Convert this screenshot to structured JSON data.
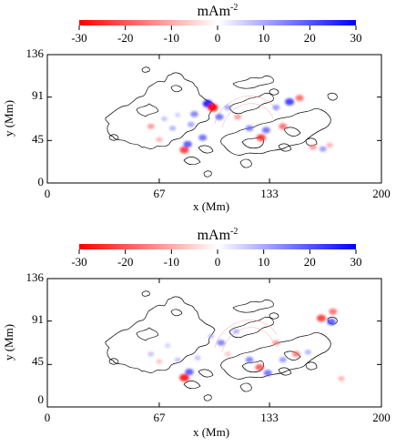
{
  "chart_data": [
    {
      "type": "heatmap",
      "colorbar": {
        "title": "mAm",
        "title_exponent": "-2",
        "range": [
          -30,
          30
        ],
        "ticks": [
          "-30",
          "-20",
          "-10",
          "0",
          "10",
          "20",
          "30"
        ],
        "colors": [
          "#ff0000",
          "#ffffff",
          "#0000ff"
        ]
      },
      "xlabel": "x (Mm)",
      "ylabel": "y (Mm)",
      "xlim": [
        0,
        200
      ],
      "ylim": [
        0,
        136
      ],
      "xticks": [
        "0",
        "67",
        "133",
        "200"
      ],
      "yticks": [
        "0",
        "45",
        "91",
        "136"
      ],
      "contour_color": "#000000",
      "blobs": [
        {
          "x": 62,
          "y": 60,
          "v": -15
        },
        {
          "x": 67,
          "y": 46,
          "v": -12
        },
        {
          "x": 70,
          "y": 68,
          "v": 10
        },
        {
          "x": 75,
          "y": 58,
          "v": 12
        },
        {
          "x": 78,
          "y": 72,
          "v": 8
        },
        {
          "x": 82,
          "y": 35,
          "v": -25
        },
        {
          "x": 84,
          "y": 41,
          "v": 22
        },
        {
          "x": 86,
          "y": 62,
          "v": 14
        },
        {
          "x": 88,
          "y": 73,
          "v": 18
        },
        {
          "x": 93,
          "y": 48,
          "v": 20
        },
        {
          "x": 96,
          "y": 84,
          "v": 28
        },
        {
          "x": 99,
          "y": 80,
          "v": -30
        },
        {
          "x": 103,
          "y": 70,
          "v": 20
        },
        {
          "x": 108,
          "y": 80,
          "v": 14
        },
        {
          "x": 114,
          "y": 70,
          "v": -15
        },
        {
          "x": 121,
          "y": 58,
          "v": 18
        },
        {
          "x": 128,
          "y": 48,
          "v": -25
        },
        {
          "x": 131,
          "y": 56,
          "v": 20
        },
        {
          "x": 137,
          "y": 80,
          "v": 15
        },
        {
          "x": 141,
          "y": 60,
          "v": -20
        },
        {
          "x": 145,
          "y": 86,
          "v": 25
        },
        {
          "x": 151,
          "y": 90,
          "v": -20
        },
        {
          "x": 159,
          "y": 38,
          "v": -15
        },
        {
          "x": 165,
          "y": 36,
          "v": 15
        },
        {
          "x": 169,
          "y": 40,
          "v": -12
        }
      ]
    },
    {
      "type": "heatmap",
      "colorbar": {
        "title": "mAm",
        "title_exponent": "-2",
        "range": [
          -30,
          30
        ],
        "ticks": [
          "-30",
          "-20",
          "-10",
          "0",
          "10",
          "20",
          "30"
        ],
        "colors": [
          "#ff0000",
          "#ffffff",
          "#0000ff"
        ]
      },
      "xlabel": "x (Mm)",
      "ylabel": "y (Mm)",
      "xlim": [
        0,
        200
      ],
      "ylim": [
        0,
        136
      ],
      "xticks": [
        "0",
        "67",
        "133",
        "200"
      ],
      "yticks": [
        "0",
        "45",
        "91",
        "136"
      ],
      "contour_color": "#000000",
      "blobs": [
        {
          "x": 62,
          "y": 56,
          "v": 10
        },
        {
          "x": 67,
          "y": 48,
          "v": -10
        },
        {
          "x": 72,
          "y": 65,
          "v": 8
        },
        {
          "x": 78,
          "y": 50,
          "v": 10
        },
        {
          "x": 82,
          "y": 31,
          "v": -28
        },
        {
          "x": 85,
          "y": 37,
          "v": 22
        },
        {
          "x": 90,
          "y": 52,
          "v": 10
        },
        {
          "x": 98,
          "y": 75,
          "v": 10
        },
        {
          "x": 104,
          "y": 68,
          "v": 18
        },
        {
          "x": 108,
          "y": 56,
          "v": -10
        },
        {
          "x": 113,
          "y": 80,
          "v": 12
        },
        {
          "x": 121,
          "y": 50,
          "v": 18
        },
        {
          "x": 127,
          "y": 42,
          "v": -22
        },
        {
          "x": 132,
          "y": 36,
          "v": 20
        },
        {
          "x": 137,
          "y": 68,
          "v": -15
        },
        {
          "x": 141,
          "y": 50,
          "v": 15
        },
        {
          "x": 149,
          "y": 56,
          "v": -18
        },
        {
          "x": 156,
          "y": 58,
          "v": 12
        },
        {
          "x": 164,
          "y": 94,
          "v": -25
        },
        {
          "x": 170,
          "y": 90,
          "v": 22
        },
        {
          "x": 171,
          "y": 101,
          "v": -20
        },
        {
          "x": 176,
          "y": 30,
          "v": -12
        }
      ]
    }
  ]
}
